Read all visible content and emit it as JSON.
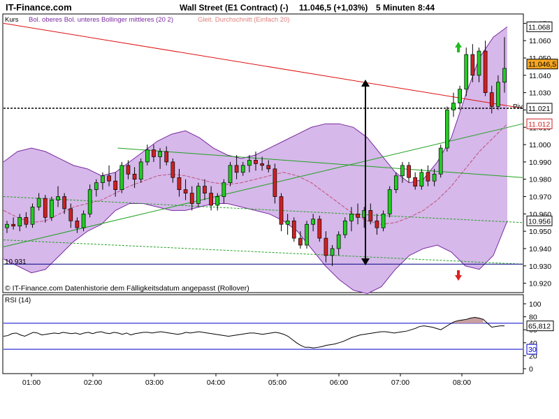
{
  "header": {
    "brand": "IT-Finance.com",
    "instrument": "Wall Street (E1 Contract) (-)",
    "last_change": "11.046,5 (+1,03%)",
    "interval": "5 Minuten",
    "time": "8:44"
  },
  "legend": {
    "kurs": "Kurs",
    "bollinger": "Bol. oberes Bol. unteres Bollinger mittleres (20 2)",
    "ma": "Gleit. Durchschnitt (Einfach 20)",
    "source_note": "© IT-Finance.com  Datenhistorie dem Fälligkeitsdatum angepasst (Rollover)",
    "rsi": "RSI (14)",
    "piv": "Piv",
    "low_label": "10.931"
  },
  "colors": {
    "up": "#22cc22",
    "down": "#cc2222",
    "band_fill": "#d6b8ea",
    "band_line": "#7a2aa0",
    "ma_line": "#c0507a",
    "trend_red": "#e01010",
    "trend_green": "#20a020",
    "piv_line": "#000000",
    "low_line": "#000080",
    "rsi_line": "#000000",
    "rsi_ref": "#0000cc"
  },
  "chart_data": [
    {
      "type": "candlestick",
      "ylim": [
        10915,
        11075
      ],
      "yticks": [
        "10.920",
        "10.930",
        "10.940",
        "10.950",
        "10.960",
        "10.970",
        "10.980",
        "10.990",
        "11.000",
        "11.010",
        "11.020",
        "11.030",
        "11.040",
        "11.050",
        "11.060",
        "11.070"
      ],
      "xticks": [
        "01:00",
        "02:00",
        "03:00",
        "04:00",
        "05:00",
        "06:00",
        "07:00",
        "08:00"
      ],
      "value_labels": [
        {
          "text": "11.068",
          "value": 11068,
          "style": "plain"
        },
        {
          "text": "11.046,5",
          "value": 11046.5,
          "style": "last"
        },
        {
          "text": "11.021",
          "value": 11021,
          "style": "plain"
        },
        {
          "text": "11.012",
          "value": 11012,
          "style": "red"
        },
        {
          "text": "10.956",
          "value": 10956,
          "style": "plain"
        }
      ],
      "pivot": 11021,
      "low_line": 10931,
      "candles": [
        {
          "t": "00:40",
          "o": 10952,
          "h": 10956,
          "l": 10949,
          "c": 10954
        },
        {
          "t": "00:45",
          "o": 10954,
          "h": 10958,
          "l": 10951,
          "c": 10953
        },
        {
          "t": "00:50",
          "o": 10953,
          "h": 10960,
          "l": 10950,
          "c": 10958
        },
        {
          "t": "00:55",
          "o": 10958,
          "h": 10961,
          "l": 10952,
          "c": 10954
        },
        {
          "t": "01:00",
          "o": 10954,
          "h": 10966,
          "l": 10952,
          "c": 10964
        },
        {
          "t": "01:05",
          "o": 10964,
          "h": 10972,
          "l": 10962,
          "c": 10969
        },
        {
          "t": "01:10",
          "o": 10969,
          "h": 10971,
          "l": 10955,
          "c": 10958
        },
        {
          "t": "01:15",
          "o": 10958,
          "h": 10970,
          "l": 10956,
          "c": 10968
        },
        {
          "t": "01:20",
          "o": 10968,
          "h": 10976,
          "l": 10964,
          "c": 10970
        },
        {
          "t": "01:25",
          "o": 10970,
          "h": 10972,
          "l": 10960,
          "c": 10963
        },
        {
          "t": "01:30",
          "o": 10963,
          "h": 10966,
          "l": 10952,
          "c": 10956
        },
        {
          "t": "01:35",
          "o": 10956,
          "h": 10958,
          "l": 10949,
          "c": 10952
        },
        {
          "t": "01:40",
          "o": 10952,
          "h": 10962,
          "l": 10950,
          "c": 10960
        },
        {
          "t": "01:45",
          "o": 10960,
          "h": 10977,
          "l": 10958,
          "c": 10974
        },
        {
          "t": "01:50",
          "o": 10974,
          "h": 10980,
          "l": 10970,
          "c": 10978
        },
        {
          "t": "01:55",
          "o": 10978,
          "h": 10984,
          "l": 10974,
          "c": 10982
        },
        {
          "t": "02:00",
          "o": 10982,
          "h": 10988,
          "l": 10976,
          "c": 10979
        },
        {
          "t": "02:05",
          "o": 10979,
          "h": 10984,
          "l": 10970,
          "c": 10974
        },
        {
          "t": "02:10",
          "o": 10974,
          "h": 10990,
          "l": 10972,
          "c": 10988
        },
        {
          "t": "02:15",
          "o": 10988,
          "h": 10991,
          "l": 10980,
          "c": 10983
        },
        {
          "t": "02:20",
          "o": 10983,
          "h": 10987,
          "l": 10975,
          "c": 10980
        },
        {
          "t": "02:25",
          "o": 10980,
          "h": 10992,
          "l": 10978,
          "c": 10990
        },
        {
          "t": "02:30",
          "o": 10990,
          "h": 11000,
          "l": 10988,
          "c": 10997
        },
        {
          "t": "02:35",
          "o": 10997,
          "h": 11000,
          "l": 10990,
          "c": 10993
        },
        {
          "t": "02:40",
          "o": 10993,
          "h": 10998,
          "l": 10986,
          "c": 10996
        },
        {
          "t": "02:45",
          "o": 10996,
          "h": 10999,
          "l": 10988,
          "c": 10990
        },
        {
          "t": "02:50",
          "o": 10990,
          "h": 10992,
          "l": 10978,
          "c": 10981
        },
        {
          "t": "02:55",
          "o": 10981,
          "h": 10986,
          "l": 10970,
          "c": 10974
        },
        {
          "t": "03:00",
          "o": 10974,
          "h": 10980,
          "l": 10968,
          "c": 10972
        },
        {
          "t": "03:05",
          "o": 10972,
          "h": 10976,
          "l": 10962,
          "c": 10966
        },
        {
          "t": "03:10",
          "o": 10966,
          "h": 10978,
          "l": 10964,
          "c": 10976
        },
        {
          "t": "03:15",
          "o": 10976,
          "h": 10980,
          "l": 10968,
          "c": 10972
        },
        {
          "t": "03:20",
          "o": 10972,
          "h": 10976,
          "l": 10962,
          "c": 10965
        },
        {
          "t": "03:25",
          "o": 10965,
          "h": 10972,
          "l": 10962,
          "c": 10970
        },
        {
          "t": "03:30",
          "o": 10970,
          "h": 10980,
          "l": 10966,
          "c": 10978
        },
        {
          "t": "03:35",
          "o": 10978,
          "h": 10990,
          "l": 10976,
          "c": 10988
        },
        {
          "t": "03:40",
          "o": 10988,
          "h": 10994,
          "l": 10980,
          "c": 10984
        },
        {
          "t": "03:45",
          "o": 10984,
          "h": 10990,
          "l": 10982,
          "c": 10988
        },
        {
          "t": "03:50",
          "o": 10988,
          "h": 10994,
          "l": 10984,
          "c": 10991
        },
        {
          "t": "03:55",
          "o": 10991,
          "h": 10996,
          "l": 10985,
          "c": 10989
        },
        {
          "t": "04:00",
          "o": 10989,
          "h": 10993,
          "l": 10985,
          "c": 10988
        },
        {
          "t": "04:05",
          "o": 10988,
          "h": 10991,
          "l": 10984,
          "c": 10986
        },
        {
          "t": "04:10",
          "o": 10986,
          "h": 10989,
          "l": 10966,
          "c": 10970
        },
        {
          "t": "04:15",
          "o": 10970,
          "h": 10972,
          "l": 10950,
          "c": 10954
        },
        {
          "t": "04:20",
          "o": 10954,
          "h": 10960,
          "l": 10948,
          "c": 10956
        },
        {
          "t": "04:25",
          "o": 10956,
          "h": 10958,
          "l": 10944,
          "c": 10946
        },
        {
          "t": "04:30",
          "o": 10946,
          "h": 10950,
          "l": 10940,
          "c": 10942
        },
        {
          "t": "04:35",
          "o": 10942,
          "h": 10956,
          "l": 10940,
          "c": 10954
        },
        {
          "t": "04:40",
          "o": 10954,
          "h": 10960,
          "l": 10950,
          "c": 10957
        },
        {
          "t": "04:45",
          "o": 10957,
          "h": 10959,
          "l": 10944,
          "c": 10946
        },
        {
          "t": "04:50",
          "o": 10946,
          "h": 10950,
          "l": 10932,
          "c": 10936
        },
        {
          "t": "04:55",
          "o": 10936,
          "h": 10942,
          "l": 10930,
          "c": 10940
        },
        {
          "t": "05:00",
          "o": 10940,
          "h": 10950,
          "l": 10936,
          "c": 10948
        },
        {
          "t": "05:05",
          "o": 10948,
          "h": 10958,
          "l": 10946,
          "c": 10956
        },
        {
          "t": "05:10",
          "o": 10956,
          "h": 10964,
          "l": 10950,
          "c": 10960
        },
        {
          "t": "05:15",
          "o": 10960,
          "h": 10966,
          "l": 10954,
          "c": 10958
        },
        {
          "t": "05:20",
          "o": 10958,
          "h": 10964,
          "l": 10952,
          "c": 10962
        },
        {
          "t": "05:25",
          "o": 10962,
          "h": 10966,
          "l": 10954,
          "c": 10956
        },
        {
          "t": "05:30",
          "o": 10956,
          "h": 10960,
          "l": 10948,
          "c": 10952
        },
        {
          "t": "05:35",
          "o": 10952,
          "h": 10962,
          "l": 10950,
          "c": 10960
        },
        {
          "t": "05:40",
          "o": 10960,
          "h": 10976,
          "l": 10958,
          "c": 10974
        },
        {
          "t": "05:45",
          "o": 10974,
          "h": 10984,
          "l": 10972,
          "c": 10982
        },
        {
          "t": "05:50",
          "o": 10982,
          "h": 10990,
          "l": 10978,
          "c": 10988
        },
        {
          "t": "05:55",
          "o": 10988,
          "h": 10990,
          "l": 10978,
          "c": 10981
        },
        {
          "t": "06:00",
          "o": 10981,
          "h": 10984,
          "l": 10974,
          "c": 10976
        },
        {
          "t": "06:05",
          "o": 10976,
          "h": 10986,
          "l": 10974,
          "c": 10984
        },
        {
          "t": "06:10",
          "o": 10984,
          "h": 10988,
          "l": 10976,
          "c": 10979
        },
        {
          "t": "06:15",
          "o": 10979,
          "h": 10986,
          "l": 10976,
          "c": 10983
        },
        {
          "t": "06:20",
          "o": 10983,
          "h": 11000,
          "l": 10981,
          "c": 10998
        },
        {
          "t": "06:25",
          "o": 10998,
          "h": 11022,
          "l": 10996,
          "c": 11020
        },
        {
          "t": "06:30",
          "o": 11020,
          "h": 11030,
          "l": 11016,
          "c": 11024
        },
        {
          "t": "06:35",
          "o": 11024,
          "h": 11034,
          "l": 11020,
          "c": 11032
        },
        {
          "t": "06:40",
          "o": 11032,
          "h": 11056,
          "l": 11028,
          "c": 11052
        },
        {
          "t": "06:45",
          "o": 11052,
          "h": 11058,
          "l": 11036,
          "c": 11040
        },
        {
          "t": "06:50",
          "o": 11040,
          "h": 11056,
          "l": 11036,
          "c": 11054
        },
        {
          "t": "06:55",
          "o": 11054,
          "h": 11060,
          "l": 11028,
          "c": 11030
        },
        {
          "t": "07:00",
          "o": 11030,
          "h": 11034,
          "l": 11018,
          "c": 11022
        },
        {
          "t": "07:05",
          "o": 11022,
          "h": 11040,
          "l": 11020,
          "c": 11036
        },
        {
          "t": "07:10",
          "o": 11036,
          "h": 11062,
          "l": 11030,
          "c": 11044
        }
      ],
      "band_upper": [
        10990,
        10996,
        10998,
        10996,
        10992,
        10988,
        10986,
        10982,
        10984,
        10990,
        10996,
        11002,
        11006,
        11008,
        11004,
        10998,
        10994,
        10992,
        10994,
        10998,
        11002,
        11006,
        11010,
        11012,
        11012,
        11010,
        11004,
        10994,
        10984,
        10978,
        10980,
        10990,
        11004,
        11028,
        11050,
        11062,
        11068
      ],
      "band_mid": [
        10962,
        10958,
        10955,
        10956,
        10960,
        10964,
        10966,
        10968,
        10972,
        10976,
        10979,
        10982,
        10983,
        10982,
        10980,
        10978,
        10977,
        10978,
        10980,
        10982,
        10984,
        10982,
        10978,
        10972,
        10966,
        10960,
        10956,
        10954,
        10955,
        10958,
        10962,
        10968,
        10976,
        10986,
        10996,
        11004,
        11012
      ],
      "band_lower": [
        10934,
        10930,
        10926,
        10928,
        10936,
        10944,
        10950,
        10954,
        10962,
        10966,
        10966,
        10964,
        10962,
        10962,
        10964,
        10966,
        10966,
        10964,
        10962,
        10960,
        10956,
        10950,
        10940,
        10930,
        10922,
        10916,
        10914,
        10918,
        10928,
        10936,
        10940,
        10942,
        10938,
        10930,
        10928,
        10936,
        10956
      ],
      "trend_red": [
        [
          0,
          11070
        ],
        [
          1,
          11021
        ]
      ],
      "trend_green_up": [
        [
          0,
          10941
        ],
        [
          1,
          11012
        ]
      ],
      "trend_green_down": [
        [
          0.22,
          10998
        ],
        [
          1,
          10981
        ]
      ],
      "dashed_green_1": [
        [
          0,
          10970
        ],
        [
          1,
          10955
        ]
      ],
      "dashed_green_2": [
        [
          0,
          10945
        ],
        [
          1,
          10931
        ]
      ]
    },
    {
      "type": "line",
      "title": "RSI (14)",
      "ylim": [
        0,
        100
      ],
      "yticks": [
        0,
        20,
        40,
        60,
        80,
        100
      ],
      "ref_levels": [
        30,
        70
      ],
      "last_label": "65,812",
      "level_label": "30",
      "values": [
        50,
        51,
        54,
        55,
        52,
        50,
        53,
        56,
        55,
        52,
        53,
        54,
        55,
        54,
        56,
        55,
        54,
        55,
        53,
        55,
        56,
        54,
        56,
        57,
        55,
        54,
        56,
        55,
        53,
        55,
        52,
        54,
        55,
        56,
        56,
        55,
        56,
        57,
        56,
        55,
        54,
        53,
        54,
        56,
        55,
        56,
        57,
        56,
        55,
        54,
        53,
        52,
        51,
        50,
        51,
        52,
        53,
        54,
        55,
        55,
        54,
        53,
        54,
        55,
        56,
        55,
        53,
        50,
        45,
        40,
        36,
        33,
        33,
        32,
        33,
        34,
        36,
        37,
        38,
        40,
        42,
        45,
        48,
        50,
        52,
        53,
        54,
        55,
        56,
        57,
        57,
        56,
        55,
        56,
        57,
        58,
        60,
        62,
        65,
        66,
        65,
        64,
        62,
        60,
        64,
        68,
        72,
        74,
        75,
        76,
        78,
        79,
        78,
        76,
        70,
        64,
        65,
        66,
        66
      ]
    }
  ]
}
